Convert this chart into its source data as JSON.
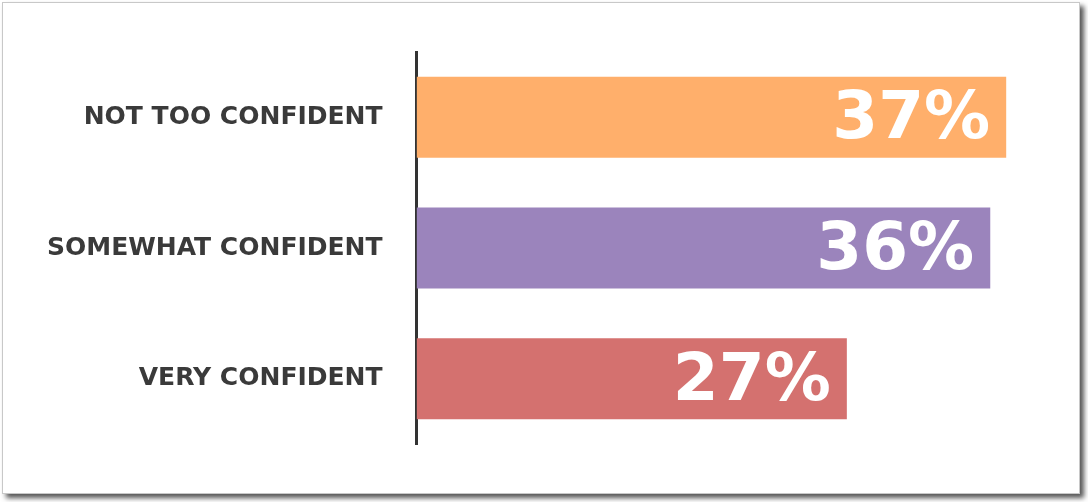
{
  "chart_data": {
    "type": "bar",
    "orientation": "horizontal",
    "categories": [
      "NOT TOO CONFIDENT",
      "SOMEWHAT CONFIDENT",
      "VERY CONFIDENT"
    ],
    "values": [
      37,
      36,
      27
    ],
    "colors": [
      "#ffaf6b",
      "#9b84bc",
      "#d4716f"
    ],
    "value_labels": [
      "37%",
      "36%",
      "27%"
    ],
    "tick_labels": "y"
  }
}
